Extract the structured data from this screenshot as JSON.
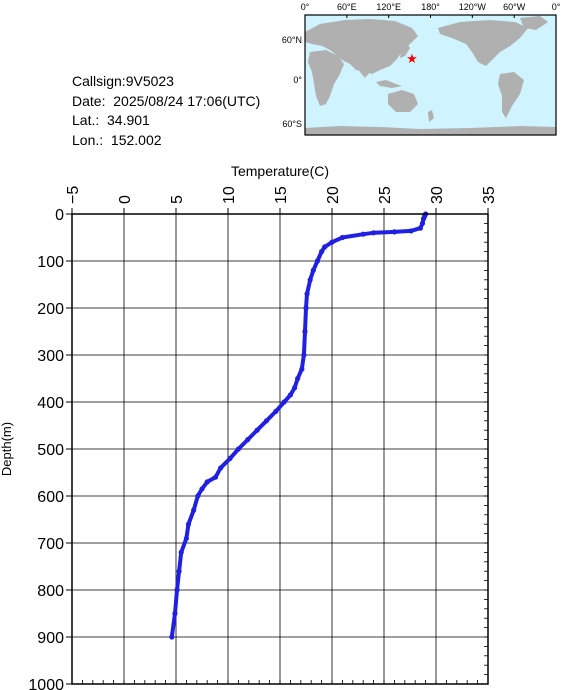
{
  "info": {
    "callsign": "Callsign:9V5023",
    "date": "Date:  2025/08/24 17:06(UTC)",
    "lat": "Lat.:  34.901",
    "lon": "Lon.:  152.002"
  },
  "map": {
    "top_labels": [
      "0°",
      "60°E",
      "120°E",
      "180°",
      "120°W",
      "60°W",
      "0°"
    ],
    "left_labels": [
      "60°N",
      "0°",
      "60°S"
    ],
    "ocean_color": "#cff3ff",
    "land_color": "#b0b0b0",
    "marker_color": "#ff0000",
    "marker_symbol": "★"
  },
  "chart_data": {
    "type": "line",
    "title": "",
    "xlabel": "Temperature(C)",
    "ylabel": "Depth(m)",
    "xlim": [
      -5,
      35
    ],
    "ylim": [
      0,
      1000
    ],
    "y_inverted": true,
    "x_axis_position": "top",
    "grid": true,
    "x_ticks": [
      -5,
      0,
      5,
      10,
      15,
      20,
      25,
      30,
      35
    ],
    "y_ticks": [
      0,
      100,
      200,
      300,
      400,
      500,
      600,
      700,
      800,
      900,
      1000
    ],
    "series": [
      {
        "color": "#2020e0",
        "points": [
          [
            29.0,
            0
          ],
          [
            28.9,
            5
          ],
          [
            28.8,
            10
          ],
          [
            28.7,
            20
          ],
          [
            28.5,
            30
          ],
          [
            27.6,
            36
          ],
          [
            26.0,
            38
          ],
          [
            24.0,
            40
          ],
          [
            23.0,
            43
          ],
          [
            21.0,
            50
          ],
          [
            20.0,
            60
          ],
          [
            19.3,
            70
          ],
          [
            19.0,
            80
          ],
          [
            18.6,
            100
          ],
          [
            18.2,
            120
          ],
          [
            17.9,
            140
          ],
          [
            17.6,
            170
          ],
          [
            17.5,
            200
          ],
          [
            17.4,
            250
          ],
          [
            17.3,
            300
          ],
          [
            17.1,
            330
          ],
          [
            16.7,
            350
          ],
          [
            16.4,
            370
          ],
          [
            16.0,
            385
          ],
          [
            15.4,
            400
          ],
          [
            14.6,
            420
          ],
          [
            13.7,
            440
          ],
          [
            12.8,
            460
          ],
          [
            11.9,
            480
          ],
          [
            11.0,
            500
          ],
          [
            10.2,
            520
          ],
          [
            9.3,
            540
          ],
          [
            8.8,
            560
          ],
          [
            8.0,
            570
          ],
          [
            7.5,
            585
          ],
          [
            7.1,
            600
          ],
          [
            6.7,
            630
          ],
          [
            6.2,
            660
          ],
          [
            6.0,
            690
          ],
          [
            5.5,
            720
          ],
          [
            5.3,
            760
          ],
          [
            5.1,
            800
          ],
          [
            4.9,
            850
          ],
          [
            4.6,
            900
          ]
        ]
      }
    ]
  }
}
